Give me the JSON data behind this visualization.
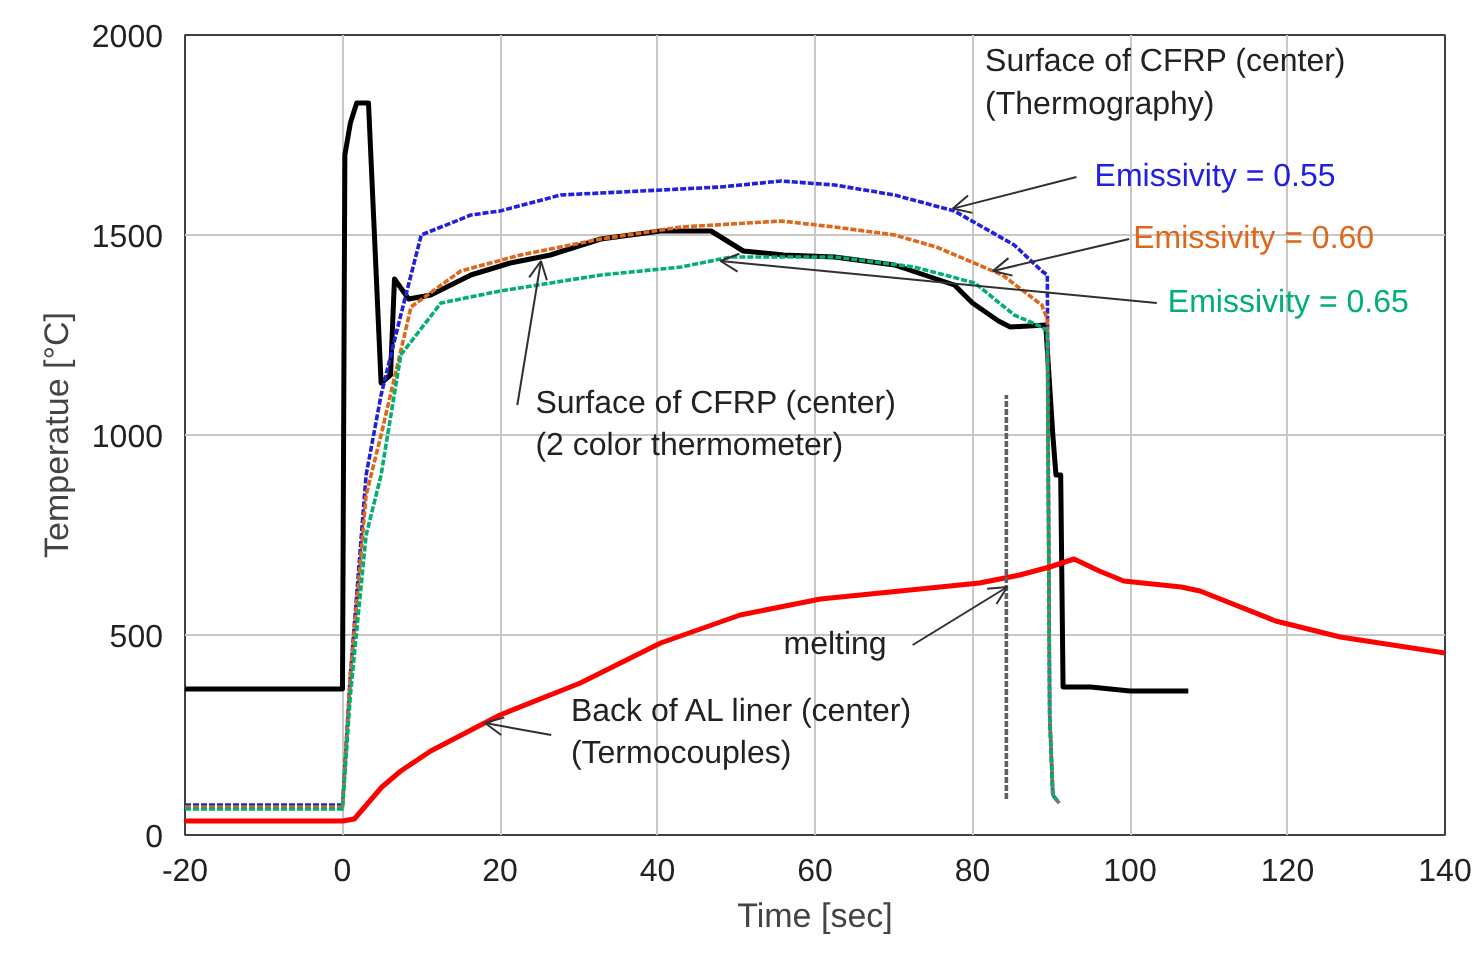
{
  "chart_data": {
    "type": "line",
    "xlabel": "Time [sec]",
    "ylabel": "Temperatue [°C]",
    "xlim": [
      -20,
      140
    ],
    "xticks": [
      -20,
      0,
      20,
      40,
      60,
      80,
      100,
      120,
      140
    ],
    "ylim": [
      0,
      2000
    ],
    "yticks": [
      0,
      500,
      1000,
      1500,
      2000
    ],
    "grid": true,
    "series": [
      {
        "color": "#000000",
        "line_style": "solid",
        "x": [
          -20,
          0,
          0.3,
          1.0,
          1.8,
          3.3,
          4.9,
          6.1,
          6.6,
          8.4,
          11.2,
          16.3,
          21.3,
          26.4,
          32.8,
          40.4,
          46.8,
          50.9,
          56,
          62.5,
          70.1,
          77.7,
          80,
          83.3,
          84.8,
          89.3,
          90.2,
          90.6,
          91.2,
          91.5,
          95,
          100,
          107.4
        ],
        "values": [
          365,
          365,
          1700,
          1780,
          1830,
          1830,
          1130,
          1150,
          1390,
          1340,
          1350,
          1400,
          1430,
          1450,
          1490,
          1510,
          1510,
          1460,
          1450,
          1445,
          1425,
          1375,
          1330,
          1285,
          1270,
          1275,
          1000,
          900,
          900,
          370,
          370,
          360,
          360
        ]
      },
      {
        "name": "Emissivity = 0.55",
        "color": "#2020e0",
        "line_style": "dashed",
        "x": [
          -20,
          0,
          1,
          3,
          4.9,
          7.4,
          10,
          16.3,
          20,
          27.7,
          37.9,
          48,
          55.7,
          62.5,
          70.1,
          77.7,
          85.3,
          88.8,
          89.5,
          89.8,
          90.2,
          91
        ],
        "values": [
          75,
          75,
          400,
          900,
          1100,
          1300,
          1500,
          1550,
          1560,
          1600,
          1610,
          1620,
          1635,
          1625,
          1600,
          1560,
          1475,
          1410,
          1400,
          300,
          100,
          80
        ]
      },
      {
        "name": "Emissivity = 0.60",
        "color": "#e0661a",
        "line_style": "dashed",
        "x": [
          -20,
          0,
          1,
          3,
          4.9,
          8.7,
          15,
          22.6,
          32.8,
          43,
          55.7,
          62.5,
          70.1,
          75.4,
          83.8,
          88.8,
          89.5,
          89.8,
          90.2,
          91
        ],
        "values": [
          70,
          70,
          400,
          850,
          1000,
          1320,
          1410,
          1450,
          1490,
          1520,
          1535,
          1520,
          1500,
          1470,
          1400,
          1325,
          1290,
          300,
          100,
          80
        ]
      },
      {
        "name": "Emissivity = 0.65",
        "color": "#00b070",
        "line_style": "dashed",
        "x": [
          -20,
          0,
          1,
          3,
          4.9,
          7.4,
          12.5,
          20,
          32.8,
          43,
          49.3,
          62.5,
          72.6,
          80.3,
          85.3,
          88.8,
          89.5,
          89.8,
          90.2,
          91
        ],
        "values": [
          65,
          65,
          350,
          750,
          900,
          1200,
          1330,
          1360,
          1400,
          1420,
          1445,
          1445,
          1420,
          1380,
          1300,
          1270,
          1260,
          300,
          100,
          80
        ]
      },
      {
        "color": "#ff0000",
        "line_style": "solid",
        "x": [
          -20,
          0,
          1.5,
          5,
          7.4,
          11.2,
          20,
          30.2,
          40.4,
          50.5,
          60.7,
          70.8,
          80.9,
          86,
          89.8,
          92.9,
          96.1,
          99.2,
          106.5,
          108.9,
          118.5,
          126.7,
          140
        ],
        "values": [
          35,
          35,
          40,
          120,
          160,
          210,
          300,
          380,
          480,
          550,
          590,
          610,
          630,
          650,
          670,
          690,
          660,
          635,
          620,
          610,
          535,
          495,
          455
        ]
      },
      {
        "color": "#606060",
        "line_style": "dashed",
        "x": [
          84.3,
          84.3
        ],
        "values": [
          90,
          1100
        ]
      }
    ],
    "annotations": [
      "Surface of CFRP (center)\n (Thermography)",
      {
        "text": "Surface of CFRP (center)\n(2 color thermometer)",
        "x": 25.2,
        "y": 1435
      },
      {
        "text": "Back of AL liner (center)\n(Termocouples)",
        "x": 18.1,
        "y": 280
      },
      {
        "text": "melting",
        "x": 84.4,
        "y": 620
      }
    ]
  }
}
